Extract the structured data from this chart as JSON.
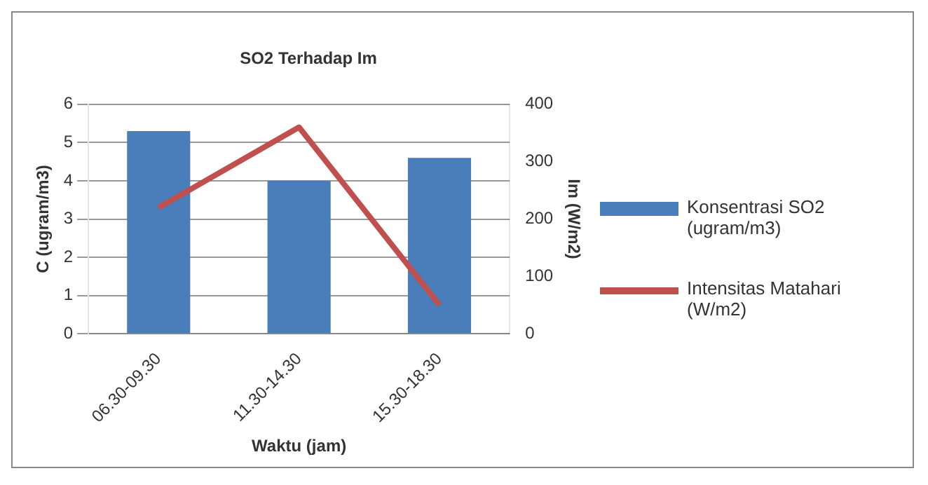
{
  "chart_data": {
    "type": "bar",
    "title": "SO2 Terhadap Im",
    "xlabel": "Waktu (jam)",
    "ylabel": "C (ugram/m3)",
    "y2label": "Im (W/m2)",
    "categories": [
      "06.30-09.30",
      "11.30-14.30",
      "15.30-18.30"
    ],
    "series": [
      {
        "name": "Konsentrasi SO2 (ugram/m3)",
        "color": "#4a7ebb",
        "values": [
          5.3,
          4.0,
          4.6
        ]
      },
      {
        "name": "Intensitas Matahari (W/m2)",
        "type": "line",
        "axis": "y2",
        "color": "#c0504d",
        "values": [
          220,
          360,
          50
        ]
      }
    ],
    "ylim": [
      0,
      6
    ],
    "yticks": [
      0,
      1,
      2,
      3,
      4,
      5,
      6
    ],
    "y2lim": [
      0,
      400
    ],
    "y2ticks": [
      0,
      100,
      200,
      300,
      400
    ],
    "grid": "y",
    "legend": "right",
    "marker": "none"
  }
}
